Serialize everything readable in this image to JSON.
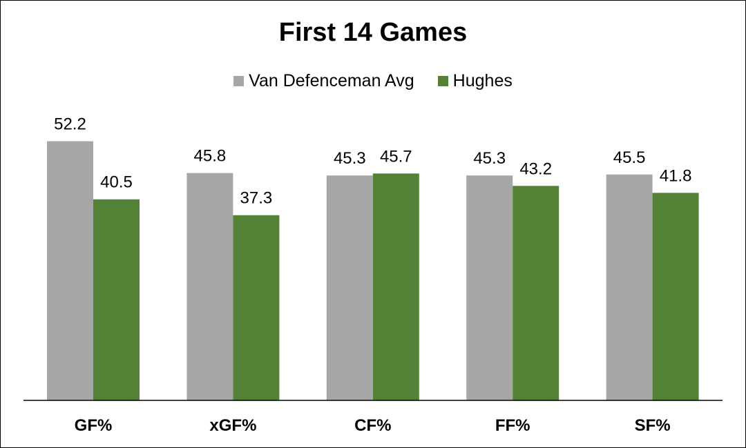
{
  "chart_data": {
    "type": "bar",
    "title": "First 14 Games",
    "categories": [
      "GF%",
      "xGF%",
      "CF%",
      "FF%",
      "SF%"
    ],
    "series": [
      {
        "name": "Van Defenceman Avg",
        "color": "#a6a6a6",
        "values": [
          52.2,
          45.8,
          45.3,
          45.3,
          45.5
        ]
      },
      {
        "name": "Hughes",
        "color": "#538135",
        "values": [
          40.5,
          37.3,
          45.7,
          43.2,
          41.8
        ]
      }
    ],
    "legend_position": "top",
    "grid": false,
    "xlabel": "",
    "ylabel": "",
    "ylim": [
      0,
      58.4
    ]
  }
}
